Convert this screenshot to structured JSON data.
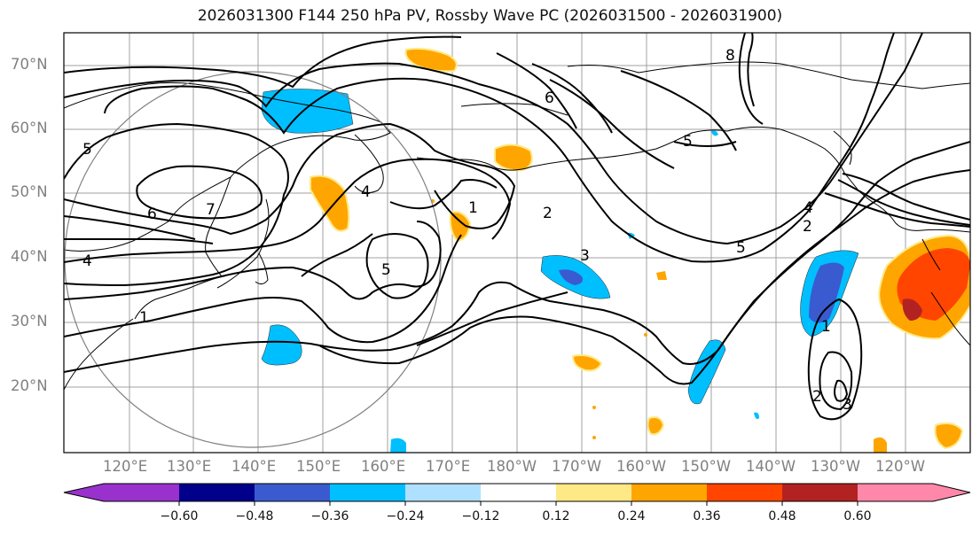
{
  "title": "2026031300 F144 250 hPa PV, Rossby Wave PC (2026031500 - 2026031900)",
  "map": {
    "lat_labels": [
      "70°N",
      "60°N",
      "50°N",
      "40°N",
      "30°N",
      "20°N"
    ],
    "lon_labels": [
      "120°E",
      "130°E",
      "140°E",
      "150°E",
      "160°E",
      "170°E",
      "180°W",
      "170°W",
      "160°W",
      "150°W",
      "140°W",
      "130°W",
      "120°W"
    ],
    "contour_labels": [
      "5",
      "6",
      "7",
      "4",
      "1",
      "4",
      "5",
      "1",
      "2",
      "3",
      "6",
      "8",
      "5",
      "4",
      "2",
      "2",
      "3",
      "5",
      "1"
    ]
  },
  "colorbar": {
    "ticks": [
      "−0.60",
      "−0.48",
      "−0.36",
      "−0.24",
      "−0.12",
      "0.12",
      "0.24",
      "0.36",
      "0.48",
      "0.60"
    ],
    "colors": [
      "#9932cc",
      "#00008b",
      "#3a5bd0",
      "#00bfff",
      "#b0e0ff",
      "#ffffff",
      "#ffe987",
      "#ffa500",
      "#ff4500",
      "#b22222",
      "#ff88aa"
    ]
  },
  "style": {
    "frame": "#000000",
    "grid": "#a0a0a0",
    "label_gray": "#808080"
  }
}
